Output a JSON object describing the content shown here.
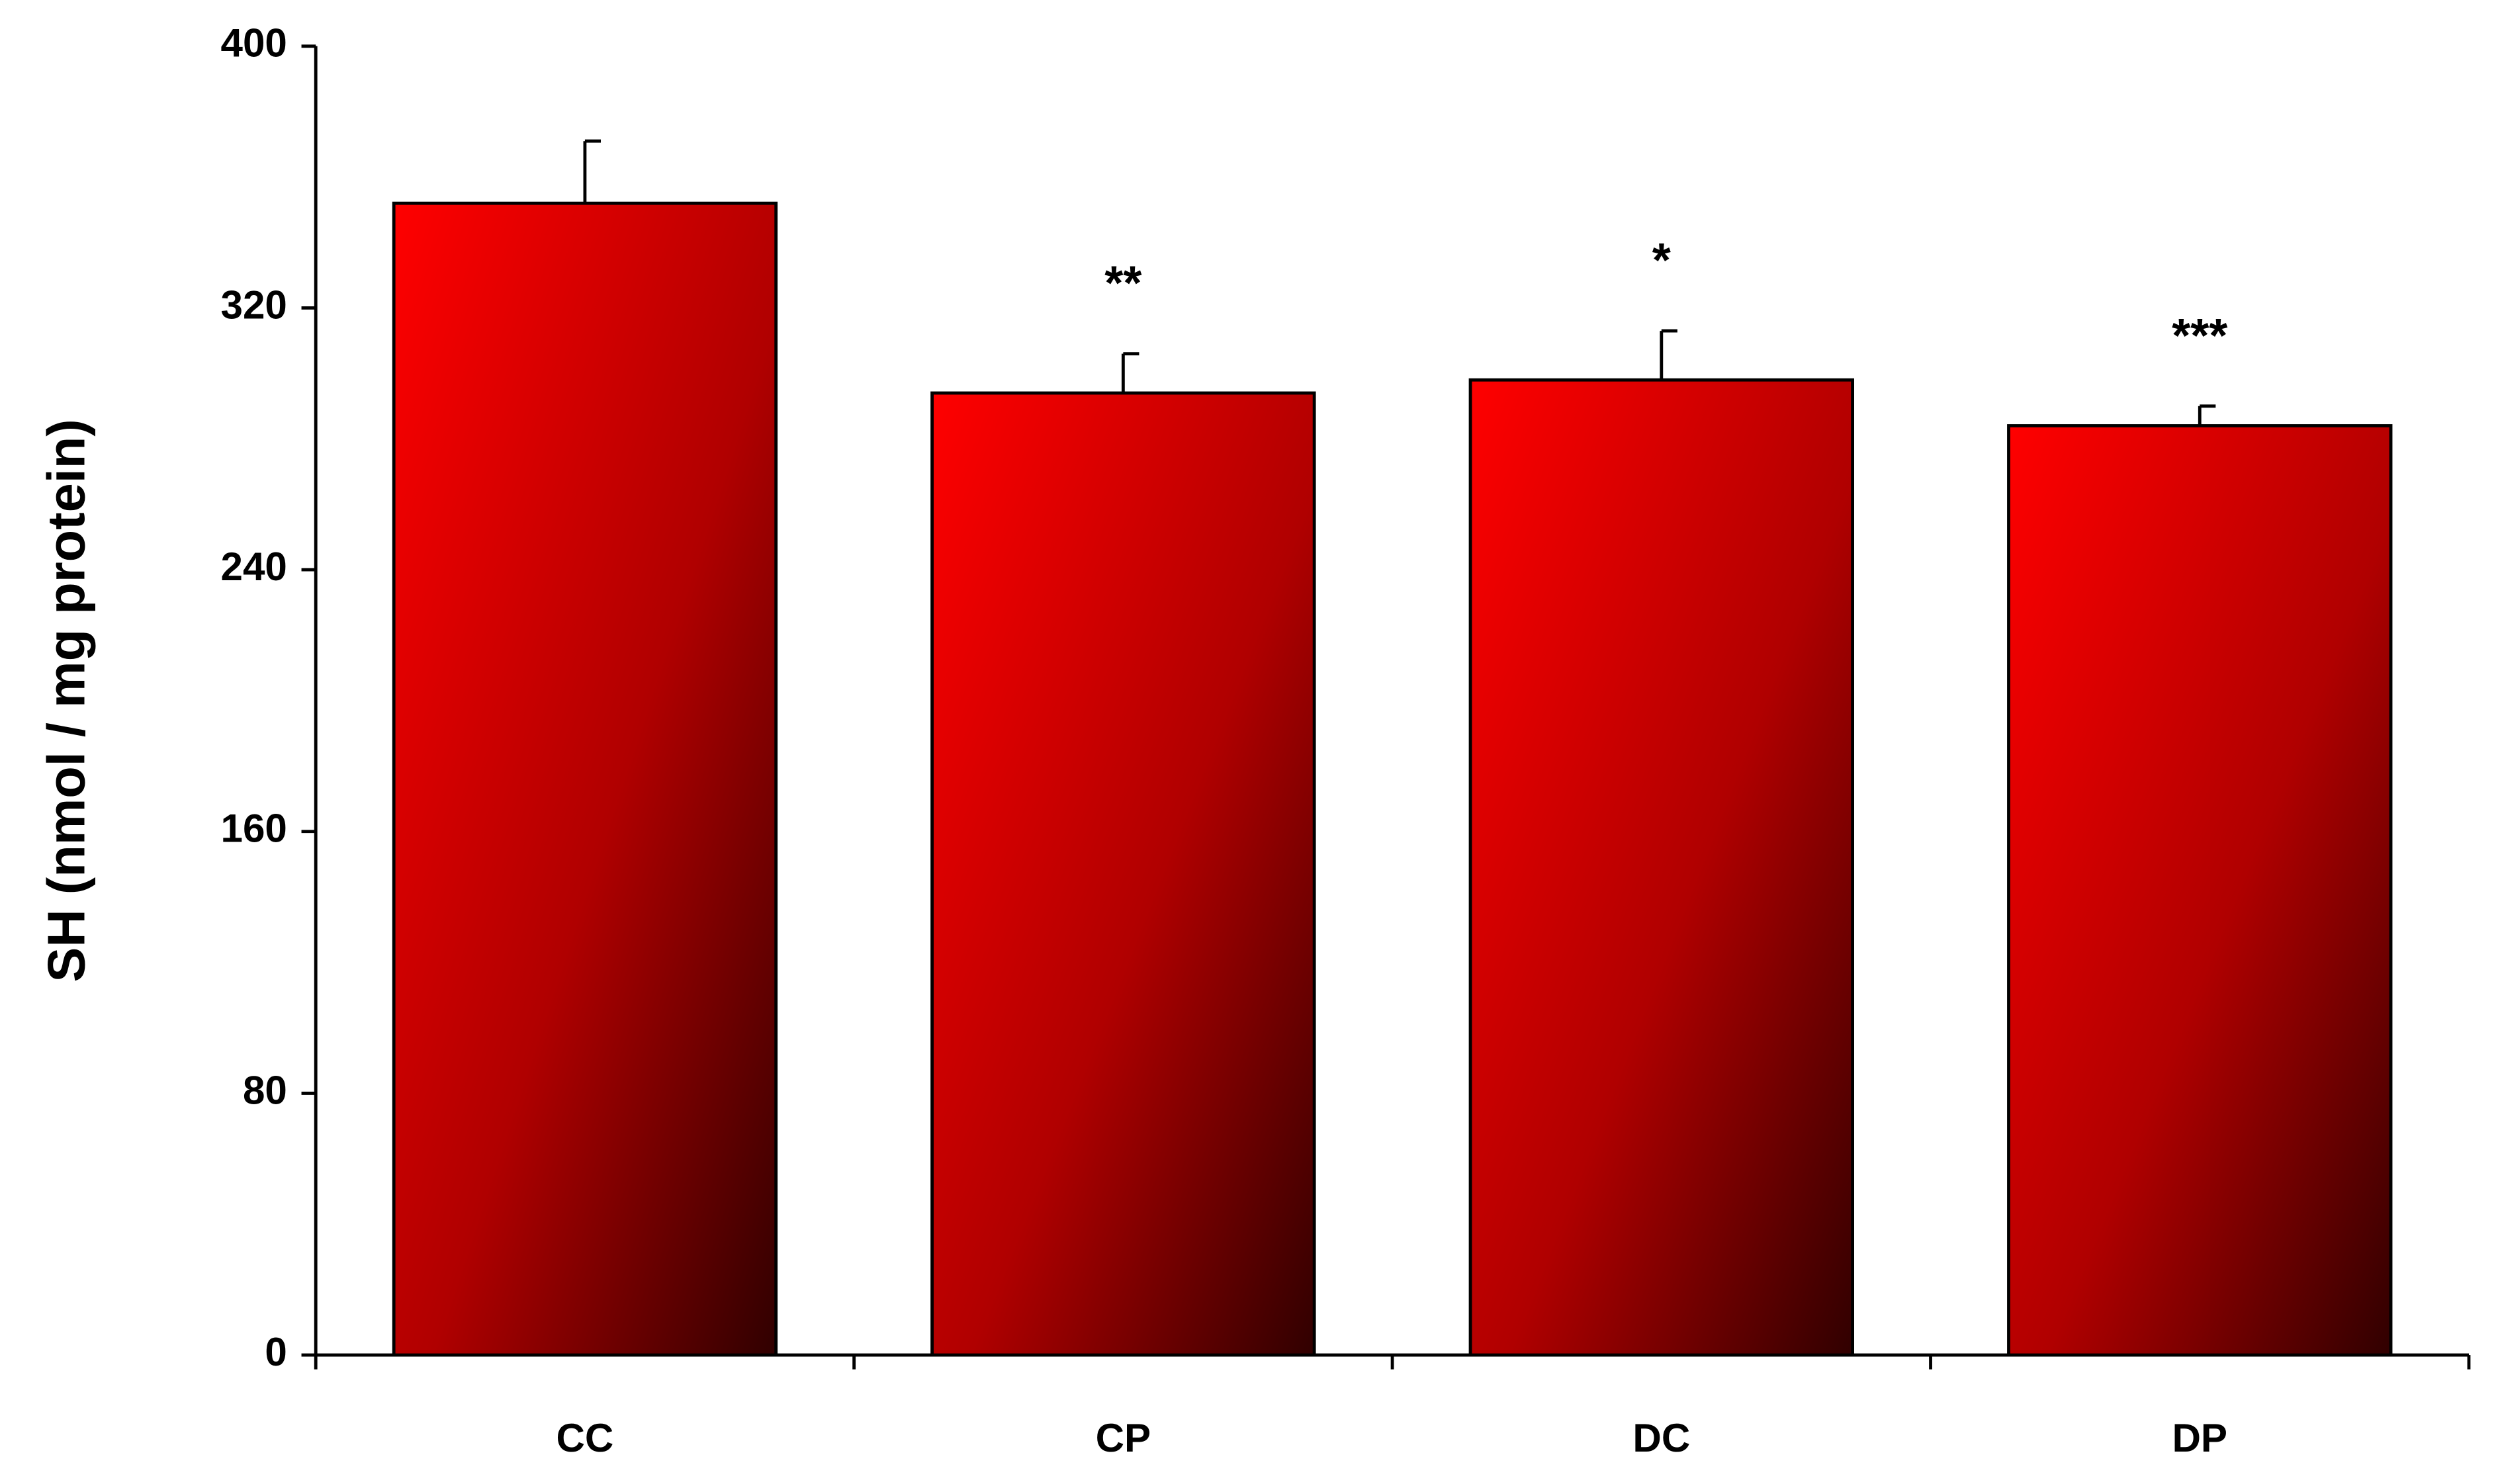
{
  "chart_data": {
    "type": "bar",
    "y_label": "SH (nmol / mg protein)",
    "categories": [
      "CC",
      "CP",
      "DC",
      "DP"
    ],
    "values": [
      352,
      294,
      298,
      284
    ],
    "errors": [
      19,
      12,
      15,
      6
    ],
    "annotations": [
      null,
      "**",
      "*",
      "***"
    ],
    "color": "#ff0000",
    "ylim": [
      0,
      400
    ],
    "yticks": [
      0,
      80,
      160,
      240,
      320,
      400
    ],
    "grid": false
  }
}
